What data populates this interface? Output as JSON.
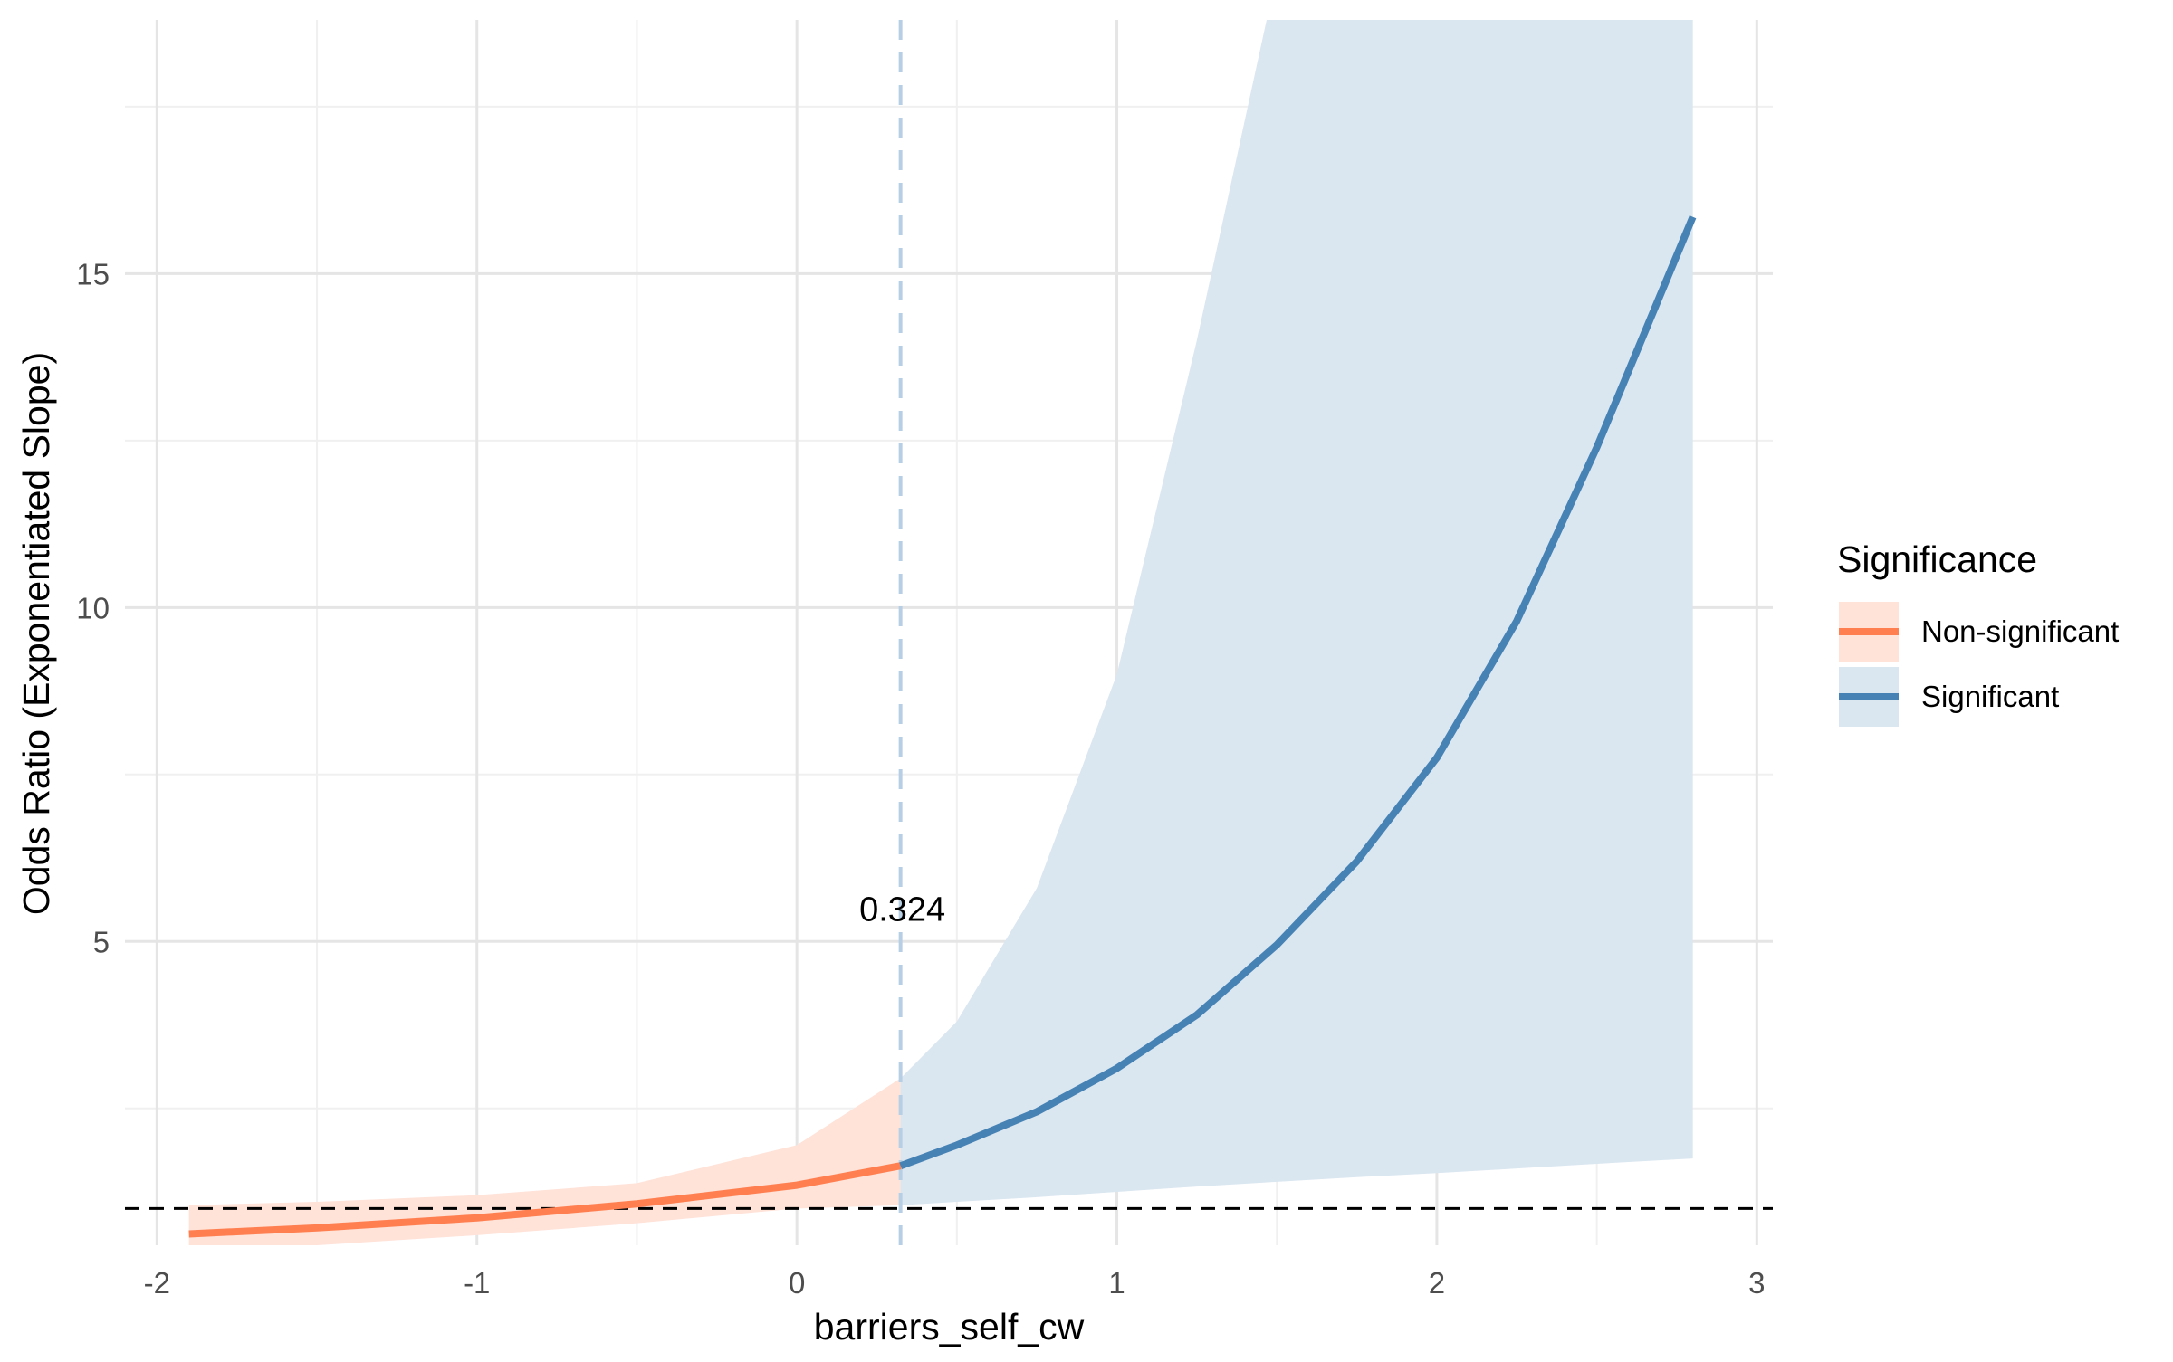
{
  "chart_data": {
    "type": "line",
    "title": "",
    "xlabel": "barriers_self_cw",
    "ylabel": "Odds Ratio (Exponentiated Slope)",
    "xlim": [
      -2.1,
      3.05
    ],
    "ylim": [
      0.45,
      18.8
    ],
    "x_ticks": [
      -2,
      -1,
      0,
      1,
      2,
      3
    ],
    "x_tick_labels": [
      "-2",
      "-1",
      "0",
      "1",
      "2",
      "3"
    ],
    "y_ticks": [
      5,
      10,
      15
    ],
    "y_tick_labels": [
      "5",
      "10",
      "15"
    ],
    "grid": true,
    "reference_line_y": 1,
    "threshold_x": 0.324,
    "threshold_label": "0.324",
    "legend": {
      "title": "Significance",
      "position": "right",
      "entries": [
        {
          "label": "Non-significant",
          "line_color": "#FF7F50",
          "fill_color": "#FFE2D8"
        },
        {
          "label": "Significant",
          "line_color": "#4682B4",
          "fill_color": "#DAE6F0"
        }
      ]
    },
    "series": [
      {
        "name": "Non-significant",
        "color": "#FF7F50",
        "band_color": "#FFE2D8",
        "x": [
          -1.9,
          -1.5,
          -1.0,
          -0.5,
          0.0,
          0.324
        ],
        "y": [
          0.62,
          0.71,
          0.86,
          1.07,
          1.35,
          1.64
        ],
        "lower": [
          0.35,
          0.45,
          0.6,
          0.78,
          1.0,
          1.05
        ],
        "upper": [
          1.05,
          1.1,
          1.2,
          1.38,
          1.95,
          2.95
        ]
      },
      {
        "name": "Significant",
        "color": "#4682B4",
        "band_color": "#DAE6F0",
        "x": [
          0.324,
          0.5,
          0.75,
          1.0,
          1.25,
          1.5,
          1.75,
          2.0,
          2.25,
          2.5,
          2.8
        ],
        "y": [
          1.64,
          1.95,
          2.45,
          3.1,
          3.9,
          4.95,
          6.2,
          7.75,
          9.8,
          12.4,
          15.85
        ],
        "lower": [
          1.05,
          1.1,
          1.17,
          1.25,
          1.33,
          1.4,
          1.47,
          1.53,
          1.6,
          1.67,
          1.75
        ],
        "upper": [
          2.95,
          3.8,
          5.8,
          9.0,
          14.0,
          19.5,
          19.5,
          19.5,
          19.5,
          19.5,
          19.5
        ]
      }
    ]
  }
}
